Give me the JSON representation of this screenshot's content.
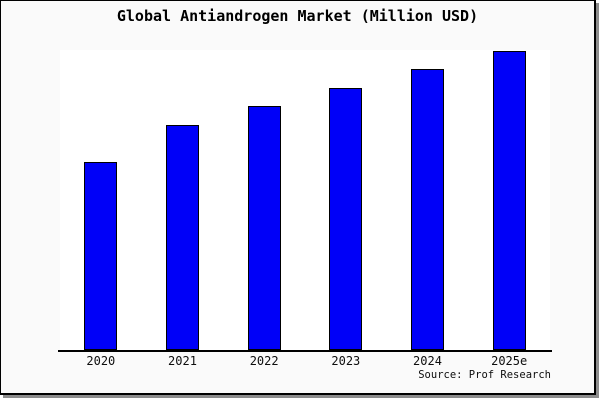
{
  "window": {
    "background_color": "#fafafa",
    "plot_background_color": "#ffffff",
    "frame_border_color": "#000000",
    "shadow_color": "#8c8c8c",
    "axis_color": "#000000"
  },
  "chart_data": {
    "type": "bar",
    "title": "Global Antiandrogen Market (Million USD)",
    "categories": [
      "2020",
      "2021",
      "2022",
      "2023",
      "2024",
      "2025e"
    ],
    "series": [
      {
        "name": "Global Antiandrogen Market",
        "values_relative_pct_of_max": [
          62.9,
          75.3,
          81.6,
          87.6,
          94.0,
          100.0
        ]
      }
    ],
    "value_axis_note": "no y-axis ticks, labels or gridlines shown; values estimated as % of tallest bar",
    "xlabel": "",
    "ylabel": "",
    "grid": false,
    "legend": "none",
    "bar_color": "#0000f8",
    "bar_edge_color": "#000000",
    "source_note": "Source: Prof Research"
  }
}
